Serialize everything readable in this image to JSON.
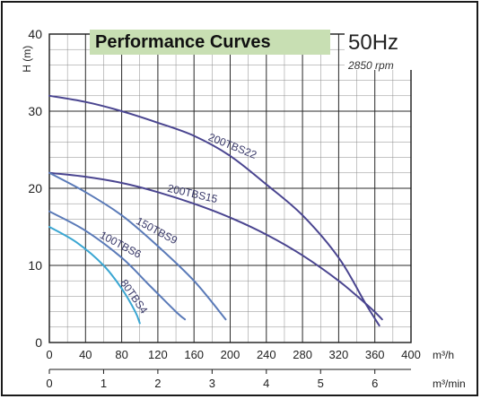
{
  "header": {
    "title": "Performance Curves",
    "frequency": "50Hz",
    "speed": "2850 rpm"
  },
  "chart_data": {
    "type": "line",
    "title": "Performance Curves",
    "ylabel": "H (m)",
    "x_unit": "m³/h",
    "x2_unit": "m³/min",
    "xlim": [
      0,
      400
    ],
    "ylim": [
      0,
      40
    ],
    "xticks": [
      0,
      40,
      80,
      120,
      160,
      200,
      240,
      280,
      320,
      360,
      400
    ],
    "yticks": [
      0,
      10,
      20,
      30,
      40
    ],
    "x2ticks": [
      0,
      1,
      2,
      3,
      4,
      5,
      6
    ],
    "grid": true,
    "colors": {
      "dark": "#4a4590",
      "mid": "#5a7ab8",
      "light": "#3aa6d2",
      "grid": "#2a2a2a"
    },
    "series": [
      {
        "name": "200TBS22",
        "color": "#4a4590",
        "x": [
          0,
          40,
          80,
          120,
          160,
          200,
          240,
          280,
          320,
          350,
          365
        ],
        "y": [
          32,
          31.2,
          30,
          28.5,
          26.8,
          24.2,
          20.5,
          16.5,
          11,
          5,
          2.2
        ]
      },
      {
        "name": "200TBS15",
        "color": "#4a4590",
        "x": [
          0,
          40,
          80,
          120,
          160,
          200,
          240,
          280,
          320,
          355,
          368
        ],
        "y": [
          22,
          21.5,
          20.7,
          19.5,
          18,
          16.2,
          14,
          11.3,
          8,
          4.5,
          3
        ]
      },
      {
        "name": "150TBS9",
        "color": "#5a7ab8",
        "x": [
          0,
          40,
          80,
          120,
          160,
          195
        ],
        "y": [
          22,
          19.5,
          16.5,
          12.5,
          8,
          3
        ]
      },
      {
        "name": "100TBS6",
        "color": "#5a7ab8",
        "x": [
          0,
          40,
          80,
          110,
          140,
          150
        ],
        "y": [
          17,
          14.5,
          11,
          7.5,
          4,
          3
        ]
      },
      {
        "name": "80TBS4",
        "color": "#3aa6d2",
        "x": [
          0,
          30,
          60,
          80,
          95,
          100
        ],
        "y": [
          15,
          13,
          10,
          7,
          4,
          2.5
        ]
      }
    ],
    "curve_labels": [
      {
        "text": "200TBS22",
        "series": 0
      },
      {
        "text": "200TBS15",
        "series": 1
      },
      {
        "text": "150TBS9",
        "series": 2
      },
      {
        "text": "100TBS6",
        "series": 3
      },
      {
        "text": "80TBS4",
        "series": 4
      }
    ]
  }
}
